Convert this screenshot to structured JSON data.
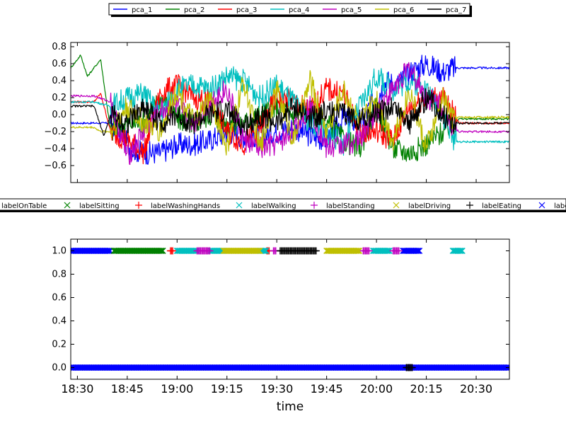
{
  "chart_data": [
    {
      "type": "line",
      "title": "",
      "xlabel": "",
      "ylabel": "",
      "ylim": [
        -0.8,
        0.85
      ],
      "xlim": [
        "18:28",
        "20:40"
      ],
      "yticks": [
        "0.8",
        "0.6",
        "0.4",
        "0.2",
        "0.0",
        "−0.2",
        "−0.4",
        "−0.6"
      ],
      "ytick_values": [
        0.8,
        0.6,
        0.4,
        0.2,
        0.0,
        -0.2,
        -0.4,
        -0.6
      ],
      "legend_position": "top-center",
      "grid": false,
      "series": [
        {
          "name": "pca_1",
          "color": "#0000ff",
          "x": [
            "18:28",
            "18:32",
            "18:36",
            "18:40",
            "18:42",
            "18:46",
            "18:50",
            "18:55",
            "19:00",
            "19:05",
            "19:10",
            "19:15",
            "19:20",
            "19:25",
            "19:30",
            "19:35",
            "19:40",
            "19:45",
            "19:50",
            "19:55",
            "20:00",
            "20:03",
            "20:06",
            "20:10",
            "20:15",
            "20:20",
            "20:23",
            "20:25",
            "20:40"
          ],
          "values": [
            -0.1,
            -0.1,
            -0.1,
            -0.1,
            -0.15,
            -0.4,
            -0.45,
            -0.45,
            -0.35,
            -0.35,
            -0.3,
            -0.2,
            -0.25,
            -0.25,
            -0.2,
            -0.15,
            -0.25,
            -0.3,
            -0.05,
            -0.1,
            0.2,
            0.4,
            0.35,
            0.5,
            0.6,
            0.5,
            0.55,
            0.55,
            0.55
          ]
        },
        {
          "name": "pca_2",
          "color": "#008000",
          "x": [
            "18:28",
            "18:31",
            "18:33",
            "18:37",
            "18:40",
            "18:45",
            "18:50",
            "18:55",
            "19:00",
            "19:05",
            "19:10",
            "19:15",
            "19:20",
            "19:25",
            "19:30",
            "19:35",
            "19:40",
            "19:45",
            "19:50",
            "19:55",
            "20:00",
            "20:05",
            "20:10",
            "20:15",
            "20:20",
            "20:25",
            "20:40"
          ],
          "values": [
            0.55,
            0.7,
            0.45,
            0.65,
            -0.2,
            -0.1,
            -0.1,
            0.2,
            -0.05,
            -0.1,
            0.0,
            -0.1,
            -0.1,
            0.0,
            0.1,
            0.0,
            0.05,
            -0.1,
            -0.3,
            -0.4,
            0.1,
            -0.4,
            -0.45,
            -0.35,
            -0.2,
            -0.05,
            -0.05
          ]
        },
        {
          "name": "pca_3",
          "color": "#ff0000",
          "x": [
            "18:28",
            "18:35",
            "18:37",
            "18:40",
            "18:45",
            "18:50",
            "18:55",
            "19:00",
            "19:05",
            "19:10",
            "19:15",
            "19:20",
            "19:25",
            "19:30",
            "19:35",
            "19:40",
            "19:45",
            "19:50",
            "19:55",
            "20:00",
            "20:05",
            "20:10",
            "20:15",
            "20:20",
            "20:25",
            "20:40"
          ],
          "values": [
            0.15,
            0.15,
            0.25,
            -0.2,
            -0.3,
            -0.45,
            0.25,
            0.35,
            0.2,
            0.15,
            -0.2,
            -0.35,
            -0.15,
            0.2,
            0.15,
            0.05,
            0.3,
            0.25,
            -0.2,
            -0.2,
            -0.3,
            0.1,
            0.2,
            0.2,
            -0.1,
            -0.1
          ]
        },
        {
          "name": "pca_4",
          "color": "#00bfbf",
          "x": [
            "18:28",
            "18:35",
            "18:40",
            "18:45",
            "18:50",
            "18:55",
            "19:00",
            "19:05",
            "19:10",
            "19:15",
            "19:20",
            "19:25",
            "19:30",
            "19:35",
            "19:40",
            "19:45",
            "19:50",
            "19:55",
            "20:00",
            "20:05",
            "20:10",
            "20:15",
            "20:20",
            "20:23",
            "20:25",
            "20:40"
          ],
          "values": [
            0.15,
            0.15,
            0.1,
            0.2,
            0.25,
            0.0,
            0.3,
            0.35,
            0.3,
            0.45,
            0.4,
            0.2,
            0.35,
            0.15,
            -0.1,
            -0.2,
            -0.35,
            0.1,
            0.45,
            0.3,
            0.4,
            0.3,
            0.0,
            -0.3,
            -0.32,
            -0.32
          ]
        },
        {
          "name": "pca_5",
          "color": "#bf00bf",
          "x": [
            "18:28",
            "18:35",
            "18:40",
            "18:45",
            "18:50",
            "18:55",
            "19:00",
            "19:05",
            "19:10",
            "19:15",
            "19:20",
            "19:25",
            "19:30",
            "19:35",
            "19:40",
            "19:45",
            "19:50",
            "19:55",
            "20:00",
            "20:05",
            "20:10",
            "20:15",
            "20:20",
            "20:23",
            "20:25",
            "20:40"
          ],
          "values": [
            0.22,
            0.22,
            0.15,
            -0.5,
            -0.2,
            0.05,
            0.1,
            -0.1,
            0.15,
            0.3,
            -0.3,
            -0.4,
            -0.35,
            -0.2,
            0.1,
            -0.4,
            -0.35,
            -0.3,
            0.05,
            0.3,
            0.55,
            0.2,
            0.1,
            -0.15,
            -0.2,
            -0.2
          ]
        },
        {
          "name": "pca_6",
          "color": "#bfbf00",
          "x": [
            "18:28",
            "18:35",
            "18:37",
            "18:40",
            "18:45",
            "18:50",
            "18:55",
            "19:00",
            "19:05",
            "19:10",
            "19:15",
            "19:20",
            "19:25",
            "19:30",
            "19:35",
            "19:40",
            "19:45",
            "19:50",
            "19:55",
            "20:00",
            "20:05",
            "20:10",
            "20:15",
            "20:20",
            "20:23",
            "20:25",
            "20:40"
          ],
          "values": [
            -0.15,
            -0.15,
            -0.2,
            -0.2,
            0.1,
            -0.1,
            -0.2,
            0.3,
            -0.1,
            0.2,
            -0.4,
            0.4,
            -0.4,
            0.3,
            -0.3,
            0.4,
            -0.2,
            0.3,
            -0.1,
            0.2,
            -0.3,
            0.3,
            -0.4,
            0.2,
            -0.05,
            -0.03,
            -0.03
          ]
        },
        {
          "name": "pca_7",
          "color": "#000000",
          "x": [
            "18:28",
            "18:35",
            "18:38",
            "18:40",
            "18:45",
            "18:50",
            "18:55",
            "19:00",
            "19:05",
            "19:10",
            "19:15",
            "19:20",
            "19:25",
            "19:30",
            "19:35",
            "19:40",
            "19:45",
            "19:50",
            "19:55",
            "20:00",
            "20:05",
            "20:10",
            "20:15",
            "20:20",
            "20:23",
            "20:25",
            "20:40"
          ],
          "values": [
            0.1,
            0.1,
            -0.25,
            0.0,
            -0.1,
            0.1,
            -0.1,
            0.0,
            -0.1,
            0.0,
            0.05,
            -0.15,
            0.0,
            -0.1,
            0.1,
            -0.05,
            0.05,
            0.0,
            -0.05,
            0.0,
            0.1,
            -0.1,
            0.2,
            0.0,
            -0.1,
            -0.1,
            -0.1
          ]
        }
      ]
    },
    {
      "type": "scatter",
      "title": "",
      "xlabel": "time",
      "ylabel": "",
      "ylim": [
        -0.1,
        1.1
      ],
      "xlim": [
        "18:28",
        "20:40"
      ],
      "yticks": [
        "1.0",
        "0.8",
        "0.6",
        "0.4",
        "0.2",
        "0.0"
      ],
      "ytick_values": [
        1.0,
        0.8,
        0.6,
        0.4,
        0.2,
        0.0
      ],
      "xticks": [
        "18:30",
        "18:45",
        "19:00",
        "19:15",
        "19:30",
        "19:45",
        "20:00",
        "20:15",
        "20:30"
      ],
      "legend_position": "top-center",
      "grid": false,
      "series": [
        {
          "name": "labelOnTable",
          "color": "#0000ff",
          "marker": "x",
          "segments_at_1": [
            [
              "18:28",
              "18:40"
            ],
            [
              "20:08",
              "20:13"
            ]
          ],
          "segments_at_0": [
            [
              "18:28",
              "20:40"
            ]
          ]
        },
        {
          "name": "labelSitting",
          "color": "#008000",
          "marker": "x",
          "segments_at_1": [
            [
              "18:41",
              "18:56"
            ]
          ],
          "segments_at_0": []
        },
        {
          "name": "labelWashingHands",
          "color": "#ff0000",
          "marker": "+",
          "segments_at_1": [
            [
              "18:58",
              "18:59"
            ],
            [
              "19:27",
              "19:28"
            ]
          ],
          "segments_at_0": []
        },
        {
          "name": "labelWalking",
          "color": "#00bfbf",
          "marker": "x",
          "segments_at_1": [
            [
              "19:00",
              "19:06"
            ],
            [
              "19:10",
              "19:14"
            ],
            [
              "19:25",
              "19:27"
            ],
            [
              "19:59",
              "20:04"
            ],
            [
              "20:23",
              "20:26"
            ]
          ],
          "segments_at_0": []
        },
        {
          "name": "labelStanding",
          "color": "#bf00bf",
          "marker": "+",
          "segments_at_1": [
            [
              "19:06",
              "19:10"
            ],
            [
              "19:29",
              "19:30"
            ],
            [
              "19:56",
              "19:58"
            ],
            [
              "20:05",
              "20:07"
            ]
          ],
          "segments_at_0": []
        },
        {
          "name": "labelDriving",
          "color": "#bfbf00",
          "marker": "x",
          "segments_at_1": [
            [
              "19:14",
              "19:25"
            ],
            [
              "19:45",
              "19:55"
            ]
          ],
          "segments_at_0": []
        },
        {
          "name": "labelEating",
          "color": "#000000",
          "marker": "+",
          "segments_at_1": [
            [
              "19:31",
              "19:42"
            ]
          ],
          "segments_at_0": [
            [
              "20:09",
              "20:11"
            ]
          ]
        }
      ]
    }
  ],
  "top_xticks": [
    "18:30",
    "18:45",
    "19:00",
    "19:15",
    "19:30",
    "19:45",
    "20:00",
    "20:15",
    "20:30"
  ],
  "legend_top_labels": [
    "pca_1",
    "pca_2",
    "pca_3",
    "pca_4",
    "pca_5",
    "pca_6",
    "pca_7"
  ],
  "legend_bottom_labels": [
    "labelOnTable",
    "labelSitting",
    "labelWashingHands",
    "labelWalking",
    "labelStanding",
    "labelDriving",
    "labelEating",
    "labe"
  ]
}
